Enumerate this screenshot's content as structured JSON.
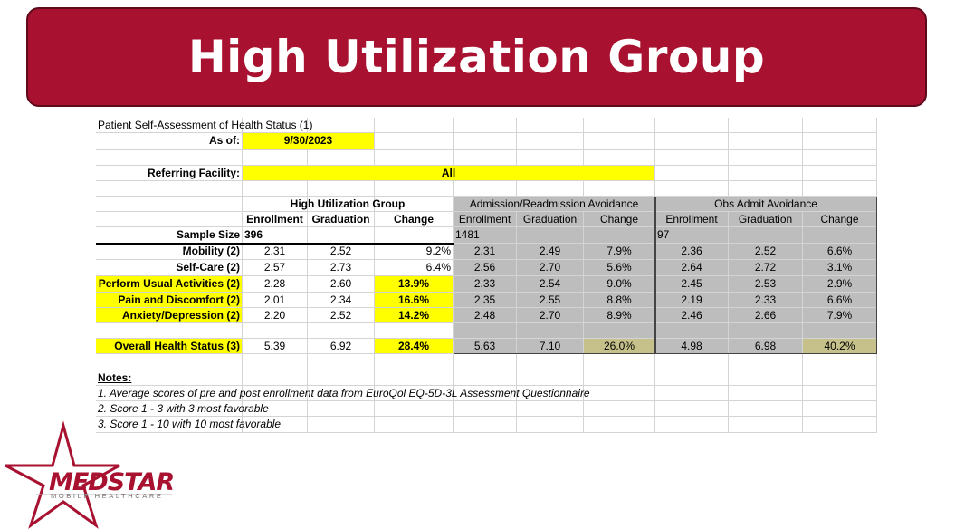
{
  "title": "High Utilization Group",
  "sheet": {
    "heading": "Patient Self-Assessment of Health Status (1)",
    "as_of_label": "As of:",
    "as_of_value": "9/30/2023",
    "facility_label": "Referring Facility:",
    "facility_value": "All",
    "groups": [
      "High Utilization Group",
      "Admission/Readmission Avoidance",
      "Obs Admit Avoidance"
    ],
    "columns": [
      "Enrollment",
      "Graduation",
      "Change"
    ],
    "sample_size_label": "Sample Size",
    "sample_sizes": [
      "396",
      "1481",
      "97"
    ],
    "rows": [
      {
        "label": "Mobility (2)",
        "values": [
          "2.31",
          "2.52",
          "9.2%",
          "2.31",
          "2.49",
          "7.9%",
          "2.36",
          "2.52",
          "6.6%"
        ]
      },
      {
        "label": "Self-Care (2)",
        "values": [
          "2.57",
          "2.73",
          "6.4%",
          "2.56",
          "2.70",
          "5.6%",
          "2.64",
          "2.72",
          "3.1%"
        ]
      },
      {
        "label": "Perform Usual Activities (2)",
        "values": [
          "2.28",
          "2.60",
          "13.9%",
          "2.33",
          "2.54",
          "9.0%",
          "2.45",
          "2.53",
          "2.9%"
        ]
      },
      {
        "label": "Pain and Discomfort (2)",
        "values": [
          "2.01",
          "2.34",
          "16.6%",
          "2.35",
          "2.55",
          "8.8%",
          "2.19",
          "2.33",
          "6.6%"
        ]
      },
      {
        "label": "Anxiety/Depression (2)",
        "values": [
          "2.20",
          "2.52",
          "14.2%",
          "2.48",
          "2.70",
          "8.9%",
          "2.46",
          "2.66",
          "7.9%"
        ]
      }
    ],
    "overall": {
      "label": "Overall Health Status (3)",
      "values": [
        "5.39",
        "6.92",
        "28.4%",
        "5.63",
        "7.10",
        "26.0%",
        "4.98",
        "6.98",
        "40.2%"
      ]
    },
    "notes_label": "Notes:",
    "notes": [
      "1. Average scores of pre and post enrollment data from EuroQol EQ-5D-3L Assessment Questionnaire",
      "2. Score 1 - 3 with 3 most favorable",
      "3. Score 1 - 10 with 10 most favorable"
    ]
  },
  "logo": {
    "name": "MEDSTAR",
    "tagline": "MOBILE HEALTHCARE"
  },
  "colors": {
    "banner": "#a8112f",
    "highlight": "#ffff00",
    "greyed": "#bdbdbd",
    "greyed_highlight": "#c6c18a"
  }
}
